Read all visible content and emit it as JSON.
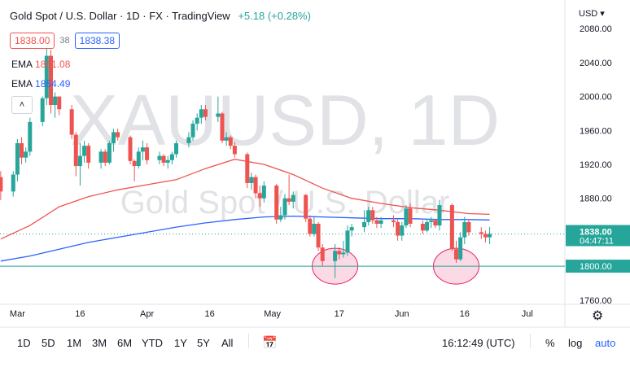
{
  "header": {
    "title": "Gold Spot / U.S. Dollar · 1D · FX · TradingView",
    "change": "+5.18 (+0.28%)",
    "currency": "USD ▾",
    "sell_price": "1838.00",
    "spread": "38",
    "buy_price": "1838.38"
  },
  "indicators": [
    {
      "label": "EMA",
      "value": "1861.08"
    },
    {
      "label": "EMA",
      "value": "1854.49"
    }
  ],
  "collapse_glyph": "˄",
  "watermark": {
    "symbol": "XAUUSD, 1D",
    "name": "Gold Spot / U.S. Dollar"
  },
  "toolbar": {
    "ranges": [
      "1D",
      "5D",
      "1M",
      "3M",
      "6M",
      "YTD",
      "1Y",
      "5Y",
      "All"
    ],
    "time": "16:12:49 (UTC)",
    "percent": "%",
    "log": "log",
    "auto": "auto"
  },
  "colors": {
    "up": "#26a69a",
    "down": "#ef5350",
    "ema_fast": "#ef5350",
    "ema_slow": "#2962ff",
    "support": "#26a69a",
    "highlight": "#f8bbd0"
  },
  "chart_data": {
    "type": "candlestick",
    "y_axis": {
      "ticks": [
        1760,
        1800,
        1840,
        1880,
        1920,
        1960,
        2000,
        2040,
        2080
      ],
      "labels": [
        "1760.00",
        "1800.00",
        "1840.00",
        "1880.00",
        "1920.00",
        "1960.00",
        "2000.00",
        "2040.00",
        "2080.00"
      ],
      "range": [
        1755,
        2085
      ]
    },
    "x_axis": {
      "range": [
        "2022-02-26",
        "2022-07-10"
      ],
      "ticks": [
        {
          "date": "2022-03-01",
          "label": "Mar"
        },
        {
          "date": "2022-03-16",
          "label": "16"
        },
        {
          "date": "2022-04-01",
          "label": "Apr"
        },
        {
          "date": "2022-04-16",
          "label": "16"
        },
        {
          "date": "2022-05-01",
          "label": "May"
        },
        {
          "date": "2022-05-17",
          "label": "17"
        },
        {
          "date": "2022-06-01",
          "label": "Jun"
        },
        {
          "date": "2022-06-16",
          "label": "16"
        },
        {
          "date": "2022-07-01",
          "label": "Jul"
        }
      ]
    },
    "current_price": {
      "value": 1838.0,
      "label": "1838.00",
      "countdown": "04:47:11"
    },
    "support": {
      "value": 1800.0,
      "label": "1800.00"
    },
    "highlights": [
      {
        "date": "2022-05-16",
        "price": 1800
      },
      {
        "date": "2022-06-14",
        "price": 1800
      }
    ],
    "ohlc": [
      [
        "2022-02-25",
        1905,
        1912,
        1878,
        1888
      ],
      [
        "2022-02-28",
        1888,
        1912,
        1882,
        1908
      ],
      [
        "2022-03-01",
        1908,
        1950,
        1900,
        1945
      ],
      [
        "2022-03-02",
        1945,
        1952,
        1920,
        1928
      ],
      [
        "2022-03-03",
        1928,
        1940,
        1922,
        1935
      ],
      [
        "2022-03-04",
        1935,
        1975,
        1930,
        1970
      ],
      [
        "2022-03-07",
        1970,
        2000,
        1965,
        1998
      ],
      [
        "2022-03-08",
        1998,
        2070,
        1990,
        2048
      ],
      [
        "2022-03-09",
        2048,
        2055,
        1980,
        1990
      ],
      [
        "2022-03-10",
        1990,
        2005,
        1975,
        2000
      ],
      [
        "2022-03-11",
        2000,
        2000,
        1978,
        1985
      ],
      [
        "2022-03-14",
        1985,
        1990,
        1950,
        1955
      ],
      [
        "2022-03-15",
        1955,
        1958,
        1906,
        1918
      ],
      [
        "2022-03-16",
        1918,
        1945,
        1895,
        1930
      ],
      [
        "2022-03-17",
        1930,
        1948,
        1922,
        1942
      ],
      [
        "2022-03-18",
        1942,
        1945,
        1915,
        1922
      ],
      [
        "2022-03-21",
        1922,
        1938,
        1915,
        1935
      ],
      [
        "2022-03-22",
        1935,
        1938,
        1918,
        1922
      ],
      [
        "2022-03-23",
        1922,
        1948,
        1920,
        1945
      ],
      [
        "2022-03-24",
        1945,
        1962,
        1935,
        1958
      ],
      [
        "2022-03-25",
        1958,
        1962,
        1948,
        1952
      ],
      [
        "2022-03-28",
        1952,
        1954,
        1920,
        1924
      ],
      [
        "2022-03-29",
        1924,
        1926,
        1900,
        1918
      ],
      [
        "2022-03-30",
        1918,
        1940,
        1915,
        1935
      ],
      [
        "2022-03-31",
        1935,
        1948,
        1925,
        1940
      ],
      [
        "2022-04-01",
        1940,
        1945,
        1920,
        1925
      ],
      [
        "2022-04-04",
        1925,
        1935,
        1920,
        1930
      ],
      [
        "2022-04-05",
        1930,
        1932,
        1918,
        1922
      ],
      [
        "2022-04-06",
        1922,
        1930,
        1915,
        1925
      ],
      [
        "2022-04-07",
        1925,
        1935,
        1920,
        1932
      ],
      [
        "2022-04-08",
        1932,
        1948,
        1928,
        1945
      ],
      [
        "2022-04-11",
        1945,
        1958,
        1940,
        1952
      ],
      [
        "2022-04-12",
        1952,
        1972,
        1948,
        1968
      ],
      [
        "2022-04-13",
        1968,
        1980,
        1960,
        1975
      ],
      [
        "2022-04-14",
        1975,
        1990,
        1968,
        1985
      ],
      [
        "2022-04-15",
        1985,
        1990,
        1972,
        1976
      ],
      [
        "2022-04-18",
        1976,
        2000,
        1970,
        1980
      ],
      [
        "2022-04-19",
        1980,
        1982,
        1945,
        1948
      ],
      [
        "2022-04-20",
        1948,
        1958,
        1942,
        1952
      ],
      [
        "2022-04-21",
        1952,
        1954,
        1938,
        1942
      ],
      [
        "2022-04-22",
        1942,
        1946,
        1928,
        1932
      ],
      [
        "2022-04-25",
        1932,
        1934,
        1892,
        1898
      ],
      [
        "2022-04-26",
        1898,
        1910,
        1890,
        1905
      ],
      [
        "2022-04-27",
        1905,
        1908,
        1880,
        1886
      ],
      [
        "2022-04-28",
        1886,
        1895,
        1870,
        1880
      ],
      [
        "2022-04-29",
        1880,
        1900,
        1875,
        1895
      ],
      [
        "2022-05-02",
        1895,
        1897,
        1850,
        1855
      ],
      [
        "2022-05-03",
        1855,
        1870,
        1852,
        1860
      ],
      [
        "2022-05-04",
        1860,
        1885,
        1855,
        1880
      ],
      [
        "2022-05-05",
        1880,
        1908,
        1872,
        1876
      ],
      [
        "2022-05-06",
        1876,
        1888,
        1868,
        1884
      ],
      [
        "2022-05-09",
        1884,
        1885,
        1852,
        1856
      ],
      [
        "2022-05-10",
        1856,
        1860,
        1835,
        1838
      ],
      [
        "2022-05-11",
        1838,
        1858,
        1835,
        1850
      ],
      [
        "2022-05-12",
        1850,
        1852,
        1818,
        1822
      ],
      [
        "2022-05-13",
        1822,
        1826,
        1800,
        1806
      ],
      [
        "2022-05-16",
        1806,
        1826,
        1786,
        1818
      ],
      [
        "2022-05-17",
        1818,
        1822,
        1808,
        1814
      ],
      [
        "2022-05-18",
        1814,
        1830,
        1810,
        1816
      ],
      [
        "2022-05-19",
        1816,
        1848,
        1812,
        1842
      ],
      [
        "2022-05-20",
        1842,
        1850,
        1835,
        1846
      ],
      [
        "2022-05-23",
        1846,
        1866,
        1840,
        1852
      ],
      [
        "2022-05-24",
        1852,
        1870,
        1848,
        1866
      ],
      [
        "2022-05-25",
        1866,
        1870,
        1850,
        1854
      ],
      [
        "2022-05-26",
        1854,
        1858,
        1845,
        1850
      ],
      [
        "2022-05-27",
        1850,
        1858,
        1845,
        1854
      ],
      [
        "2022-05-30",
        1854,
        1860,
        1846,
        1852
      ],
      [
        "2022-05-31",
        1852,
        1856,
        1830,
        1836
      ],
      [
        "2022-06-01",
        1836,
        1852,
        1830,
        1848
      ],
      [
        "2022-06-02",
        1848,
        1872,
        1845,
        1868
      ],
      [
        "2022-06-03",
        1868,
        1874,
        1846,
        1850
      ],
      [
        "2022-06-06",
        1850,
        1854,
        1838,
        1842
      ],
      [
        "2022-06-07",
        1842,
        1856,
        1840,
        1852
      ],
      [
        "2022-06-08",
        1852,
        1858,
        1845,
        1854
      ],
      [
        "2022-06-09",
        1854,
        1856,
        1845,
        1848
      ],
      [
        "2022-06-10",
        1848,
        1878,
        1842,
        1872
      ],
      [
        "2022-06-13",
        1872,
        1874,
        1818,
        1820
      ],
      [
        "2022-06-14",
        1820,
        1830,
        1804,
        1808
      ],
      [
        "2022-06-15",
        1808,
        1840,
        1806,
        1834
      ],
      [
        "2022-06-16",
        1834,
        1858,
        1826,
        1852
      ],
      [
        "2022-06-17",
        1852,
        1854,
        1836,
        1840
      ],
      [
        "2022-06-20",
        1840,
        1846,
        1832,
        1838
      ],
      [
        "2022-06-21",
        1838,
        1842,
        1828,
        1834
      ],
      [
        "2022-06-22",
        1834,
        1846,
        1826,
        1838
      ]
    ],
    "ema_fast": [
      [
        "2022-02-25",
        1832
      ],
      [
        "2022-03-04",
        1848
      ],
      [
        "2022-03-11",
        1870
      ],
      [
        "2022-03-18",
        1882
      ],
      [
        "2022-03-25",
        1890
      ],
      [
        "2022-04-01",
        1896
      ],
      [
        "2022-04-08",
        1902
      ],
      [
        "2022-04-15",
        1915
      ],
      [
        "2022-04-22",
        1926
      ],
      [
        "2022-04-29",
        1920
      ],
      [
        "2022-05-06",
        1908
      ],
      [
        "2022-05-13",
        1892
      ],
      [
        "2022-05-20",
        1880
      ],
      [
        "2022-05-27",
        1874
      ],
      [
        "2022-06-03",
        1869
      ],
      [
        "2022-06-10",
        1866
      ],
      [
        "2022-06-17",
        1862
      ],
      [
        "2022-06-22",
        1861.08
      ]
    ],
    "ema_slow": [
      [
        "2022-02-25",
        1806
      ],
      [
        "2022-03-04",
        1812
      ],
      [
        "2022-03-11",
        1820
      ],
      [
        "2022-03-18",
        1828
      ],
      [
        "2022-03-25",
        1834
      ],
      [
        "2022-04-01",
        1840
      ],
      [
        "2022-04-08",
        1846
      ],
      [
        "2022-04-15",
        1851
      ],
      [
        "2022-04-22",
        1855
      ],
      [
        "2022-04-29",
        1858
      ],
      [
        "2022-05-06",
        1859
      ],
      [
        "2022-05-13",
        1858
      ],
      [
        "2022-05-20",
        1857
      ],
      [
        "2022-05-27",
        1856
      ],
      [
        "2022-06-03",
        1856
      ],
      [
        "2022-06-10",
        1855
      ],
      [
        "2022-06-17",
        1855
      ],
      [
        "2022-06-22",
        1854.49
      ]
    ]
  }
}
